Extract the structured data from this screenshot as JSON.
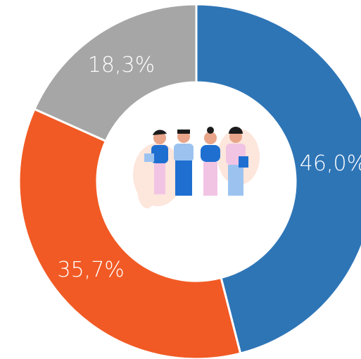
{
  "chart_data": {
    "type": "pie",
    "values": [
      46.0,
      35.7,
      18.3
    ],
    "value_labels": [
      "46,0%",
      "35,7%",
      "18,3%"
    ],
    "colors": [
      "#2e75b6",
      "#f15a24",
      "#a6a6a6"
    ]
  }
}
